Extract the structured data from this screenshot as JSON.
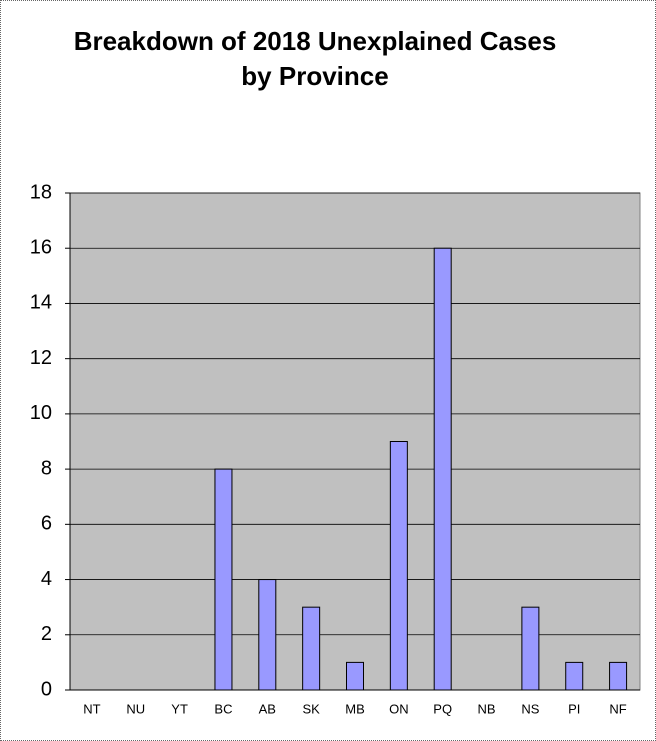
{
  "chart_data": {
    "type": "bar",
    "title": "Breakdown of 2018 Unexplained Cases by Province",
    "categories": [
      "NT",
      "NU",
      "YT",
      "BC",
      "AB",
      "SK",
      "MB",
      "ON",
      "PQ",
      "NB",
      "NS",
      "PI",
      "NF"
    ],
    "values": [
      0,
      0,
      0,
      8,
      4,
      3,
      1,
      9,
      16,
      0,
      3,
      1,
      1
    ],
    "color": "#9999ff",
    "ylim": [
      0,
      18
    ],
    "yticks": [
      0,
      2,
      4,
      6,
      8,
      10,
      12,
      14,
      16,
      18
    ],
    "grid": true
  }
}
